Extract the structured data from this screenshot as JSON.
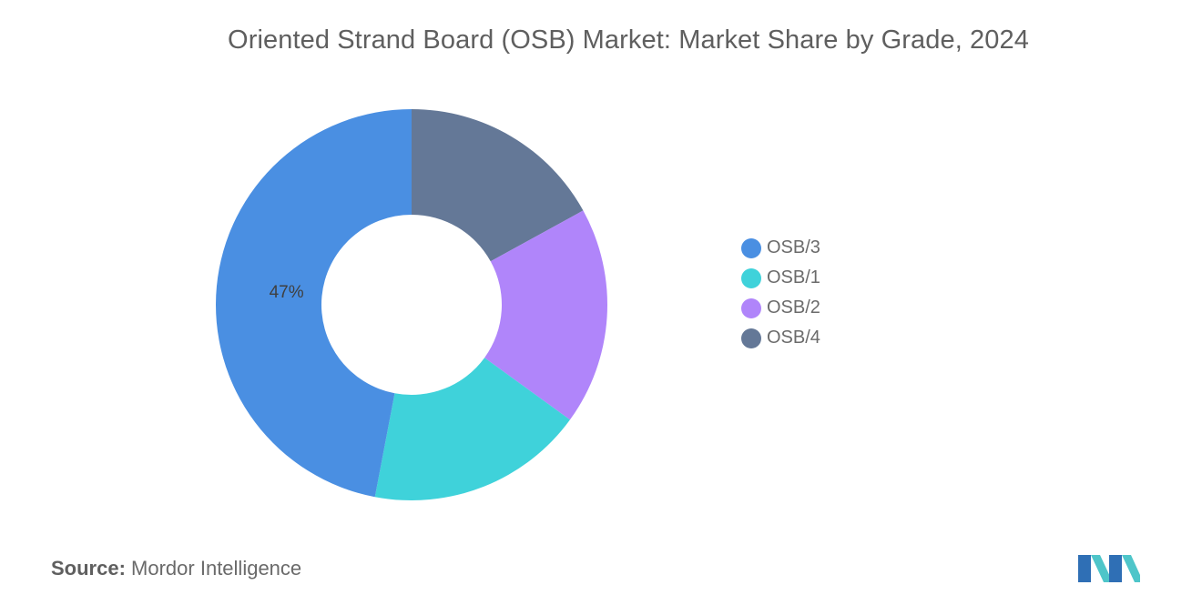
{
  "chart_data": {
    "type": "pie",
    "title": "Oriented Strand Board (OSB) Market: Market Share by Grade, 2024",
    "donut": true,
    "labels": [
      "OSB/3",
      "OSB/1",
      "OSB/2",
      "OSB/4"
    ],
    "values": [
      47,
      18,
      18,
      17
    ],
    "colors": [
      "#4a8fe2",
      "#3fd2da",
      "#b085fa",
      "#647897"
    ],
    "data_labels": [
      "47%",
      "",
      "",
      ""
    ],
    "legend_position": "right"
  },
  "source": {
    "label": "Source:",
    "text": "Mordor Intelligence"
  },
  "logo": {
    "icon": "mordor-intelligence-logo",
    "colors": [
      "#2f6fb5",
      "#4ec5c9"
    ]
  }
}
